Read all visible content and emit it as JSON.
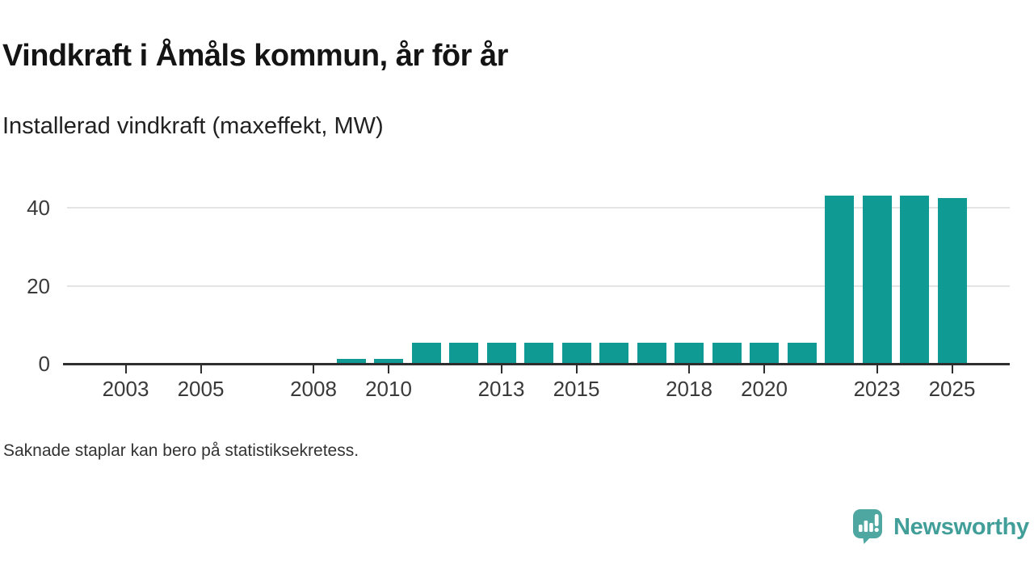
{
  "header": {
    "title": "Vindkraft i Åmåls kommun, år för år",
    "subtitle": "Installerad vindkraft (maxeffekt, MW)"
  },
  "footnote": "Saknade staplar kan bero på statistiksekretess.",
  "branding": {
    "name": "Newsworthy",
    "icon": "newsworthy-speech-bubble-barchart-icon",
    "icon_color": "#4fa7a1",
    "text_color": "#419e98"
  },
  "colors": {
    "bar": "#0f9b93",
    "axis": "#2e2e2e",
    "grid": "#e4e4e4",
    "label": "#3a3a3a"
  },
  "chart_data": {
    "type": "bar",
    "title": "Vindkraft i Åmåls kommun, år för år",
    "subtitle": "Installerad vindkraft (maxeffekt, MW)",
    "unit": "MW",
    "x": [
      2002,
      2003,
      2004,
      2005,
      2006,
      2007,
      2008,
      2009,
      2010,
      2011,
      2012,
      2013,
      2014,
      2015,
      2016,
      2017,
      2018,
      2019,
      2020,
      2021,
      2022,
      2023,
      2024,
      2025
    ],
    "values": [
      null,
      null,
      null,
      null,
      null,
      null,
      null,
      1.3,
      1.3,
      5.4,
      5.4,
      5.4,
      5.4,
      5.4,
      5.4,
      5.4,
      5.4,
      5.4,
      5.4,
      5.4,
      43.1,
      43.1,
      43.1,
      42.5
    ],
    "x_tick_labels": [
      2003,
      2005,
      2008,
      2010,
      2013,
      2015,
      2018,
      2020,
      2023,
      2025
    ],
    "y_ticks": [
      0,
      20,
      40
    ],
    "ylim": [
      0,
      43.5
    ],
    "grid": "horizontal-only",
    "legend": "none",
    "missing_bars_note": "Saknade staplar kan bero på statistiksekretess."
  }
}
